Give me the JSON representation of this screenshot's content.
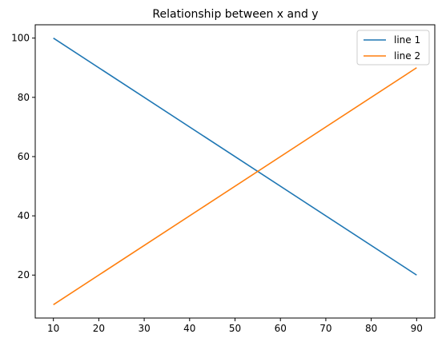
{
  "chart_data": {
    "type": "line",
    "title": "Relationship between x and y",
    "xlabel": "",
    "ylabel": "",
    "x": [
      10,
      90
    ],
    "xlim": [
      6,
      94
    ],
    "ylim": [
      5.5,
      104.5
    ],
    "xticks": [
      10,
      20,
      30,
      40,
      50,
      60,
      70,
      80,
      90
    ],
    "yticks": [
      20,
      40,
      60,
      80,
      100
    ],
    "grid": false,
    "legend_position": "top-right",
    "series": [
      {
        "name": "line 1",
        "color": "#1f77b4",
        "x": [
          10,
          90
        ],
        "values": [
          100,
          20
        ]
      },
      {
        "name": "line 2",
        "color": "#ff7f0e",
        "x": [
          10,
          90
        ],
        "values": [
          10,
          90
        ]
      }
    ]
  }
}
